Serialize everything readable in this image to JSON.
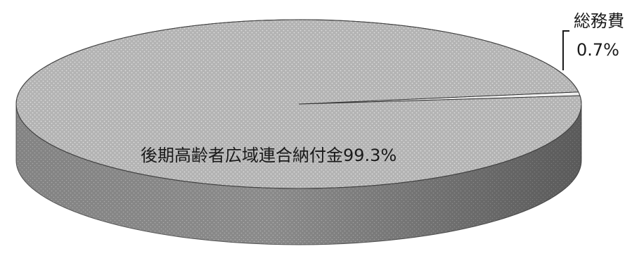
{
  "chart_data": {
    "type": "pie",
    "style": "3d",
    "title": "",
    "slices": [
      {
        "name": "後期高齢者広域連合納付金",
        "percent_label": "99.3%",
        "value": 99.3,
        "color": "#b9b9b9"
      },
      {
        "name": "総務費",
        "percent_label": "0.7%",
        "value": 0.7,
        "color": "#efefef"
      }
    ],
    "legend": "none",
    "label_style": "inline name and percent; small slice labelled outside with leader line"
  }
}
